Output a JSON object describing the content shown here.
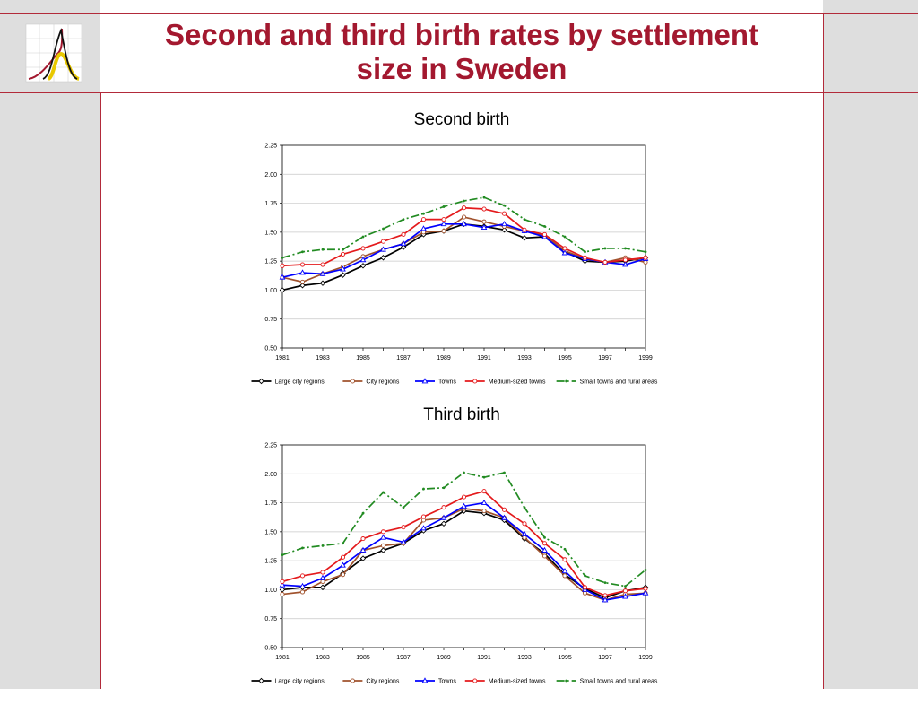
{
  "title_line1": "Second and third birth rates by settlement",
  "title_line2": "size in Sweden",
  "colors": {
    "title": "#a3182f",
    "accent_border": "#b22a3a",
    "side_panel": "#dedede"
  },
  "chart_data": [
    {
      "type": "line",
      "title": "Second birth",
      "x": [
        1981,
        1982,
        1983,
        1984,
        1985,
        1986,
        1987,
        1988,
        1989,
        1990,
        1991,
        1992,
        1993,
        1994,
        1995,
        1996,
        1997,
        1998,
        1999
      ],
      "xticks": [
        "1981",
        "1983",
        "1985",
        "1987",
        "1989",
        "1991",
        "1993",
        "1995",
        "1997",
        "1999"
      ],
      "yticks": [
        "0.50",
        "0.75",
        "1.00",
        "1.25",
        "1.50",
        "1.75",
        "2.00",
        "2.25"
      ],
      "ylim": [
        0.5,
        2.25
      ],
      "grid": true,
      "legend_position": "bottom",
      "series": [
        {
          "name": "Large city regions",
          "color": "#000000",
          "marker": "diamond",
          "dash": "",
          "values": [
            1.0,
            1.04,
            1.06,
            1.13,
            1.21,
            1.28,
            1.37,
            1.48,
            1.51,
            1.57,
            1.55,
            1.52,
            1.45,
            1.46,
            1.33,
            1.25,
            1.24,
            1.25,
            1.28
          ]
        },
        {
          "name": "City regions",
          "color": "#a0522d",
          "marker": "circle",
          "dash": "",
          "values": [
            1.11,
            1.07,
            1.14,
            1.2,
            1.29,
            1.35,
            1.4,
            1.5,
            1.51,
            1.63,
            1.59,
            1.55,
            1.51,
            1.47,
            1.34,
            1.27,
            1.24,
            1.28,
            1.24
          ]
        },
        {
          "name": "Towns",
          "color": "#0000ff",
          "marker": "triangle",
          "dash": "",
          "values": [
            1.11,
            1.15,
            1.14,
            1.18,
            1.26,
            1.35,
            1.4,
            1.53,
            1.57,
            1.57,
            1.54,
            1.57,
            1.51,
            1.46,
            1.32,
            1.27,
            1.24,
            1.22,
            1.27
          ]
        },
        {
          "name": "Medium-sized towns",
          "color": "#e41a1c",
          "marker": "circle",
          "dash": "",
          "values": [
            1.21,
            1.22,
            1.22,
            1.31,
            1.36,
            1.42,
            1.48,
            1.61,
            1.61,
            1.71,
            1.7,
            1.66,
            1.52,
            1.48,
            1.36,
            1.28,
            1.24,
            1.26,
            1.28
          ]
        },
        {
          "name": "Small towns and rural areas",
          "color": "#228b22",
          "marker": "dot",
          "dash": "9,3,2,3",
          "values": [
            1.28,
            1.33,
            1.35,
            1.35,
            1.46,
            1.53,
            1.61,
            1.66,
            1.72,
            1.77,
            1.8,
            1.73,
            1.61,
            1.55,
            1.46,
            1.33,
            1.36,
            1.36,
            1.33
          ]
        }
      ]
    },
    {
      "type": "line",
      "title": "Third birth",
      "x": [
        1981,
        1982,
        1983,
        1984,
        1985,
        1986,
        1987,
        1988,
        1989,
        1990,
        1991,
        1992,
        1993,
        1994,
        1995,
        1996,
        1997,
        1998,
        1999
      ],
      "xticks": [
        "1981",
        "1983",
        "1985",
        "1987",
        "1989",
        "1991",
        "1993",
        "1995",
        "1997",
        "1999"
      ],
      "yticks": [
        "0.50",
        "0.75",
        "1.00",
        "1.25",
        "1.50",
        "1.75",
        "2.00",
        "2.25"
      ],
      "ylim": [
        0.5,
        2.25
      ],
      "grid": true,
      "legend_position": "bottom",
      "series": [
        {
          "name": "Large city regions",
          "color": "#000000",
          "marker": "diamond",
          "dash": "",
          "values": [
            1.0,
            1.02,
            1.02,
            1.14,
            1.27,
            1.34,
            1.4,
            1.51,
            1.57,
            1.68,
            1.66,
            1.6,
            1.44,
            1.31,
            1.13,
            1.01,
            0.93,
            0.99,
            1.02
          ]
        },
        {
          "name": "City regions",
          "color": "#a0522d",
          "marker": "circle",
          "dash": "",
          "values": [
            0.96,
            0.98,
            1.07,
            1.13,
            1.34,
            1.38,
            1.4,
            1.6,
            1.62,
            1.7,
            1.68,
            1.62,
            1.45,
            1.29,
            1.12,
            0.97,
            0.91,
            0.96,
            0.97
          ]
        },
        {
          "name": "Towns",
          "color": "#0000ff",
          "marker": "triangle",
          "dash": "",
          "values": [
            1.04,
            1.03,
            1.1,
            1.21,
            1.34,
            1.45,
            1.41,
            1.53,
            1.62,
            1.72,
            1.75,
            1.62,
            1.48,
            1.34,
            1.16,
            1.0,
            0.91,
            0.94,
            0.97
          ]
        },
        {
          "name": "Medium-sized towns",
          "color": "#e41a1c",
          "marker": "circle",
          "dash": "",
          "values": [
            1.07,
            1.12,
            1.15,
            1.28,
            1.44,
            1.5,
            1.54,
            1.63,
            1.71,
            1.8,
            1.85,
            1.69,
            1.57,
            1.4,
            1.26,
            1.02,
            0.95,
            0.99,
            1.01
          ]
        },
        {
          "name": "Small towns and rural areas",
          "color": "#228b22",
          "marker": "dot",
          "dash": "9,3,2,3",
          "values": [
            1.3,
            1.36,
            1.38,
            1.4,
            1.66,
            1.84,
            1.71,
            1.87,
            1.88,
            2.01,
            1.97,
            2.01,
            1.71,
            1.45,
            1.35,
            1.12,
            1.06,
            1.03,
            1.17
          ]
        }
      ]
    }
  ]
}
